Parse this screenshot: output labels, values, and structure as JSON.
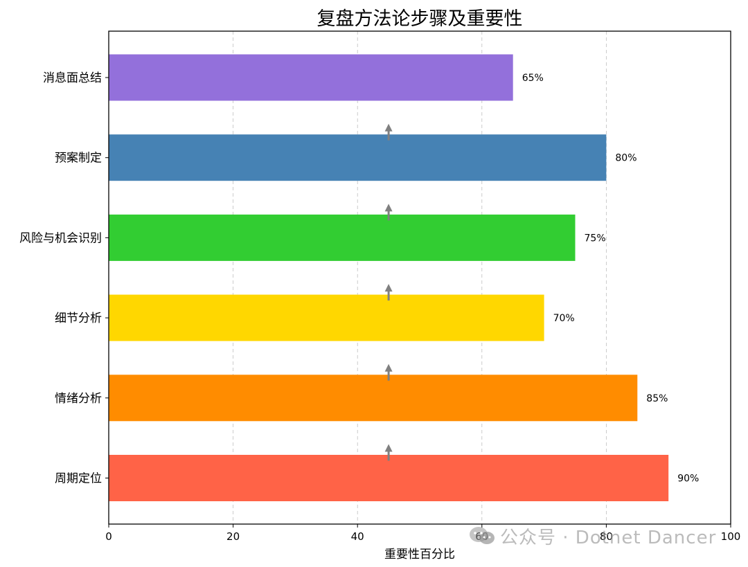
{
  "chart_data": {
    "type": "bar",
    "orientation": "horizontal",
    "title": "复盘方法论步骤及重要性",
    "xlabel": "重要性百分比",
    "ylabel": "",
    "xlim": [
      0,
      100
    ],
    "xticks": [
      0,
      20,
      40,
      60,
      80,
      100
    ],
    "grid": "x-axis dashed",
    "categories": [
      "周期定位",
      "情绪分析",
      "细节分析",
      "风险与机会识别",
      "预案制定",
      "消息面总结"
    ],
    "values": [
      90,
      85,
      70,
      75,
      80,
      65
    ],
    "data_labels": [
      "90%",
      "85%",
      "70%",
      "75%",
      "80%",
      "65%"
    ],
    "colors": [
      "#FF6347",
      "#FF8C00",
      "#FFD700",
      "#32CD32",
      "#4682B4",
      "#9370DB"
    ],
    "arrows": {
      "x": 45,
      "color": "#808080",
      "direction": "up"
    }
  },
  "watermark": {
    "text": "公众号 · Dotnet Dancer",
    "icon": "wechat-icon"
  }
}
